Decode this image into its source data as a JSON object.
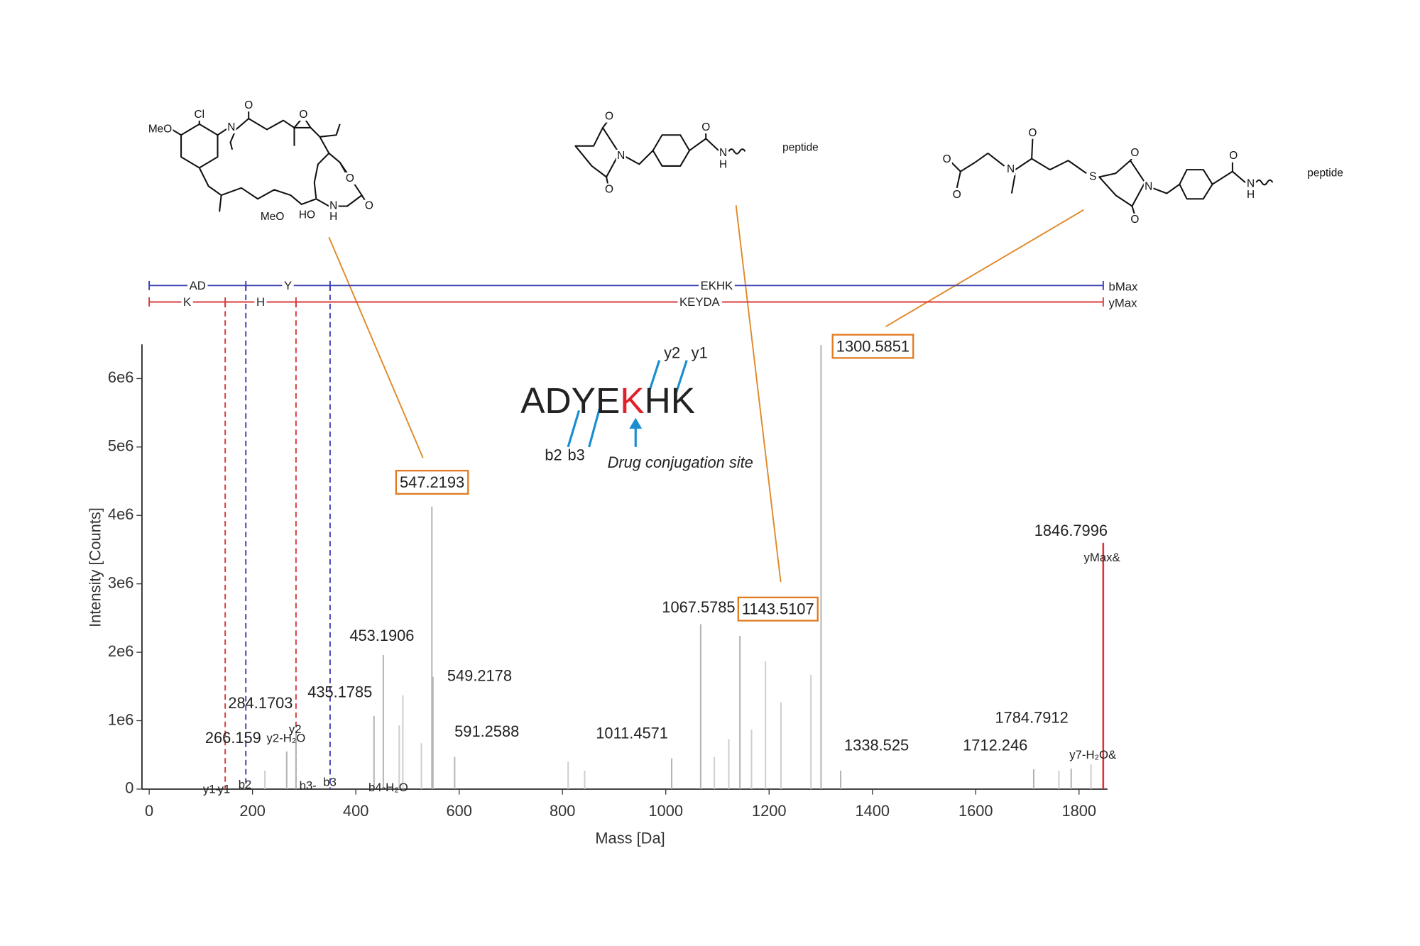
{
  "chart_data": {
    "type": "spectrum",
    "x_label": "Mass [Da]",
    "y_label": "Intensity [Counts]",
    "xlim": [
      -14,
      1855
    ],
    "xticks": [
      0,
      200,
      400,
      600,
      800,
      1000,
      1200,
      1400,
      1600,
      1800
    ],
    "ylim": [
      0,
      6500000
    ],
    "yticks": [
      0,
      {
        "value": 1000000,
        "label": "1e6"
      },
      {
        "value": 2000000,
        "label": "2e6"
      },
      {
        "value": 3000000,
        "label": "3e6"
      },
      {
        "value": 4000000,
        "label": "4e6"
      },
      {
        "value": 5000000,
        "label": "5e6"
      },
      {
        "value": 6000000,
        "label": "6e6"
      }
    ],
    "series": [
      {
        "color": "#b5b5b5",
        "show_labels": true,
        "x": [
          266.159,
          284.1703,
          435.1785,
          453.1906,
          549.2178,
          591.2588,
          1011.4571,
          1067.5785,
          1338.525,
          1712.246,
          1784.7912
        ],
        "values": [
          550000,
          850000,
          1070000,
          1960000,
          1640000,
          470000,
          450000,
          2410000,
          270000,
          290000,
          300000
        ]
      },
      {
        "color": "#b5b5b5",
        "show_labels": true,
        "box_color": "#e07b20",
        "x": [
          547.2193,
          1143.5107,
          1300.5851
        ],
        "values": [
          4130000,
          2240000,
          6490000
        ]
      },
      {
        "color": "#cfcfcf",
        "show_labels": false,
        "x": [
          224,
          484,
          491,
          527,
          811,
          843,
          1094,
          1122,
          1166,
          1193,
          1223,
          1281,
          1761,
          1823
        ],
        "values": [
          270000,
          930000,
          1370000,
          670000,
          400000,
          270000,
          470000,
          730000,
          870000,
          1870000,
          1270000,
          1670000,
          270000,
          360000
        ]
      },
      {
        "color": "#e03030",
        "show_labels": true,
        "tag": "yMax&",
        "x": [
          1846.7996
        ],
        "values": [
          3600000
        ]
      }
    ],
    "ladders": [
      {
        "color": "#3a3fb0",
        "breaks": [
          0,
          187.07,
          350.14,
          1846.8
        ],
        "labels": [
          "AD",
          "Y",
          "EKHK"
        ],
        "end_label": "bMax"
      },
      {
        "color": "#d93a3a",
        "breaks": [
          0,
          147.11,
          284.17,
          1846.8
        ],
        "labels": [
          "K",
          "H",
          "KEYDA"
        ],
        "end_label": "yMax"
      }
    ],
    "ion_labels": [
      {
        "text": "y1-",
        "color": "#7cc47c"
      },
      {
        "text": "y1",
        "color": "#e03030"
      },
      {
        "text": "b2",
        "color": "#3a3fb0"
      },
      {
        "text": "y2-H₂O",
        "color": "#7cc47c"
      },
      {
        "text": "y2",
        "color": "#e03030"
      },
      {
        "text": "b3-",
        "color": "#7cc47c"
      },
      {
        "text": "b3",
        "color": "#3a3fb0"
      },
      {
        "text": "b4-H₂O",
        "color": "#7cc47c"
      },
      {
        "text": "y7-H₂O&",
        "color": "#7cc47c"
      }
    ],
    "peptide": {
      "residues": [
        {
          "text": "A"
        },
        {
          "text": "D"
        },
        {
          "text": "Y"
        },
        {
          "text": "E"
        },
        {
          "text": "K",
          "color": "#e0202a"
        },
        {
          "text": "H"
        },
        {
          "text": "K"
        }
      ],
      "fragments": [
        "b2",
        "b3",
        "y2",
        "y1"
      ],
      "site_label": "Drug conjugation site"
    },
    "structures": [
      {
        "labels": [
          "Cl",
          "MeO",
          "N",
          "O",
          "O",
          "O",
          "O",
          "N",
          "H",
          "HO",
          "MeO"
        ]
      },
      {
        "labels": [
          "O",
          "O",
          "N",
          "O",
          "N",
          "H",
          "peptide"
        ]
      },
      {
        "labels": [
          "O",
          "O",
          "N",
          "O",
          "S",
          "O",
          "O",
          "N",
          "O",
          "N",
          "H",
          "peptide"
        ]
      }
    ]
  }
}
